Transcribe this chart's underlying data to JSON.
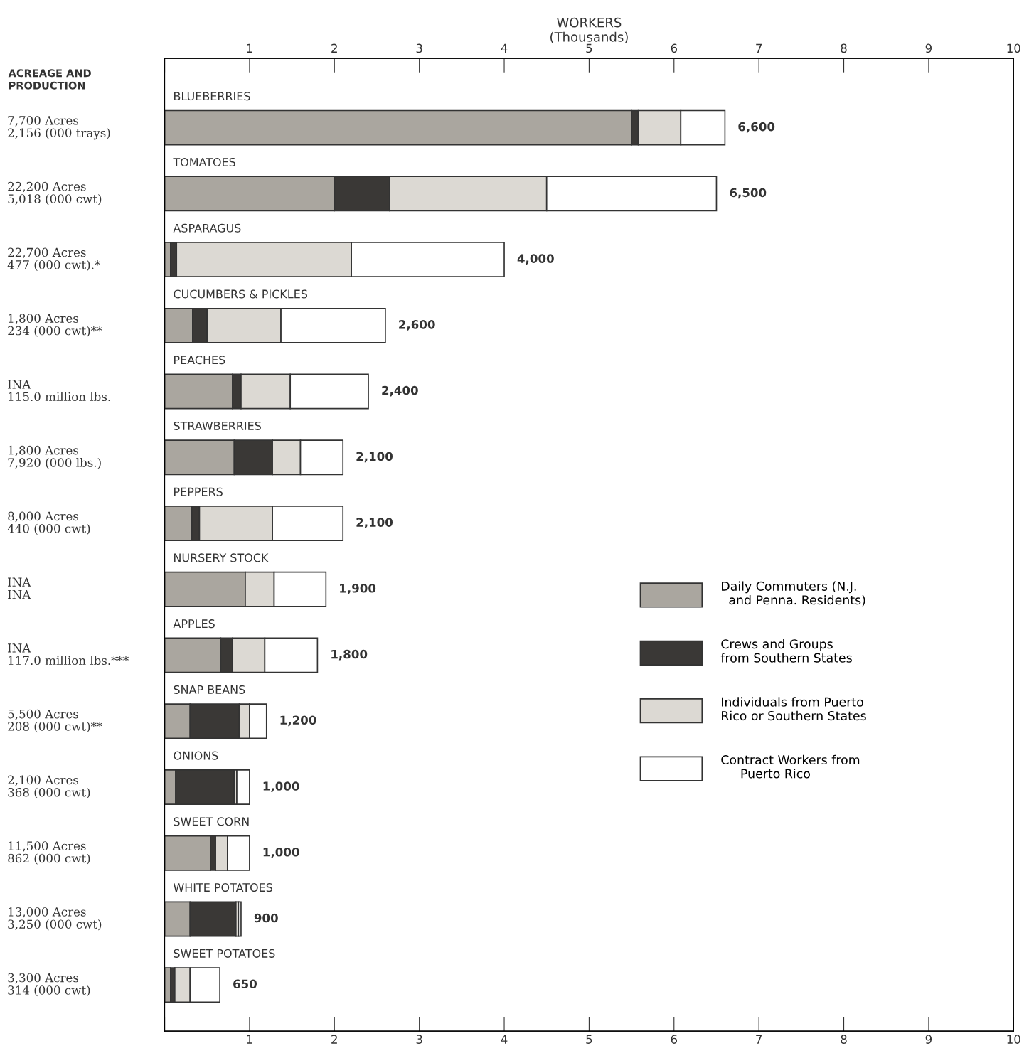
{
  "chart_data": {
    "type": "bar",
    "orientation": "horizontal",
    "stacked": true,
    "xlabel": "WORKERS\n(Thousands)",
    "categories": [
      "BLUEBERRIES",
      "TOMATOES",
      "ASPARAGUS",
      "CUCUMBERS & PICKLES",
      "PEACHES",
      "STRAWBERRIES",
      "PEPPERS",
      "NURSERY STOCK",
      "APPLES",
      "SNAP BEANS",
      "ONIONS",
      "SWEET CORN",
      "WHITE POTATOES",
      "SWEET POTATOES"
    ],
    "series": [
      {
        "name": "Daily Commuters (N.J.\n  and Penna. Residents)",
        "color": "#aaa69f",
        "values": [
          5.5,
          2.0,
          0.07,
          0.33,
          0.8,
          0.82,
          0.32,
          0.95,
          0.66,
          0.3,
          0.13,
          0.54,
          0.3,
          0.07
        ]
      },
      {
        "name": "Crews and Groups\nfrom Southern States",
        "color": "#3a3836",
        "values": [
          0.08,
          0.65,
          0.07,
          0.17,
          0.1,
          0.45,
          0.09,
          0,
          0.14,
          0.58,
          0.69,
          0.06,
          0.54,
          0.05
        ]
      },
      {
        "name": "Individuals from Puerto\nRico or Southern States",
        "color": "#dcd9d3",
        "values": [
          0.5,
          1.85,
          2.06,
          0.87,
          0.58,
          0.33,
          0.86,
          0.34,
          0.38,
          0.12,
          0.03,
          0.14,
          0.03,
          0.18
        ]
      },
      {
        "name": "Contract Workers from\n     Puerto Rico",
        "color": "#ffffff",
        "values": [
          0.52,
          2.0,
          1.8,
          1.23,
          0.92,
          0.5,
          0.83,
          0.61,
          0.62,
          0.2,
          0.15,
          0.26,
          0.03,
          0.35
        ]
      }
    ],
    "totals": [
      "6,600",
      "6,500",
      "4,000",
      "2,600",
      "2,400",
      "2,100",
      "2,100",
      "1,900",
      "1,800",
      "1,200",
      "1,000",
      "1,000",
      "900",
      "650"
    ],
    "xlim": [
      0,
      10
    ],
    "xticks": [
      {
        "value": 0,
        "label": null
      },
      1,
      2,
      3,
      4,
      5,
      6,
      7,
      8,
      9,
      10
    ],
    "x2lim": [
      0,
      10
    ],
    "x2ticks": [
      {
        "value": 0,
        "label": null
      },
      1,
      2,
      3,
      4,
      5,
      6,
      7,
      8,
      9,
      10
    ],
    "grid": false,
    "legend": "right",
    "annotations": [
      "ACREAGE AND\nPRODUCTION",
      "7,700 Acres\n2,156 (000 trays)",
      "22,200 Acres\n5,018 (000 cwt)",
      "22,700 Acres\n477 (000 cwt).*",
      "1,800 Acres\n234 (000 cwt)**",
      "INA\n115.0 million lbs.",
      "1,800 Acres\n7,920 (000 lbs.)",
      "8,000 Acres\n440 (000 cwt)",
      "INA\nINA",
      "INA\n117.0 million lbs.***",
      "5,500 Acres\n208 (000 cwt)**",
      "2,100 Acres\n368 (000 cwt)",
      "11,500 Acres\n862 (000 cwt)",
      "13,000 Acres\n3,250 (000 cwt)",
      "3,300 Acres\n314 (000 cwt)"
    ]
  }
}
